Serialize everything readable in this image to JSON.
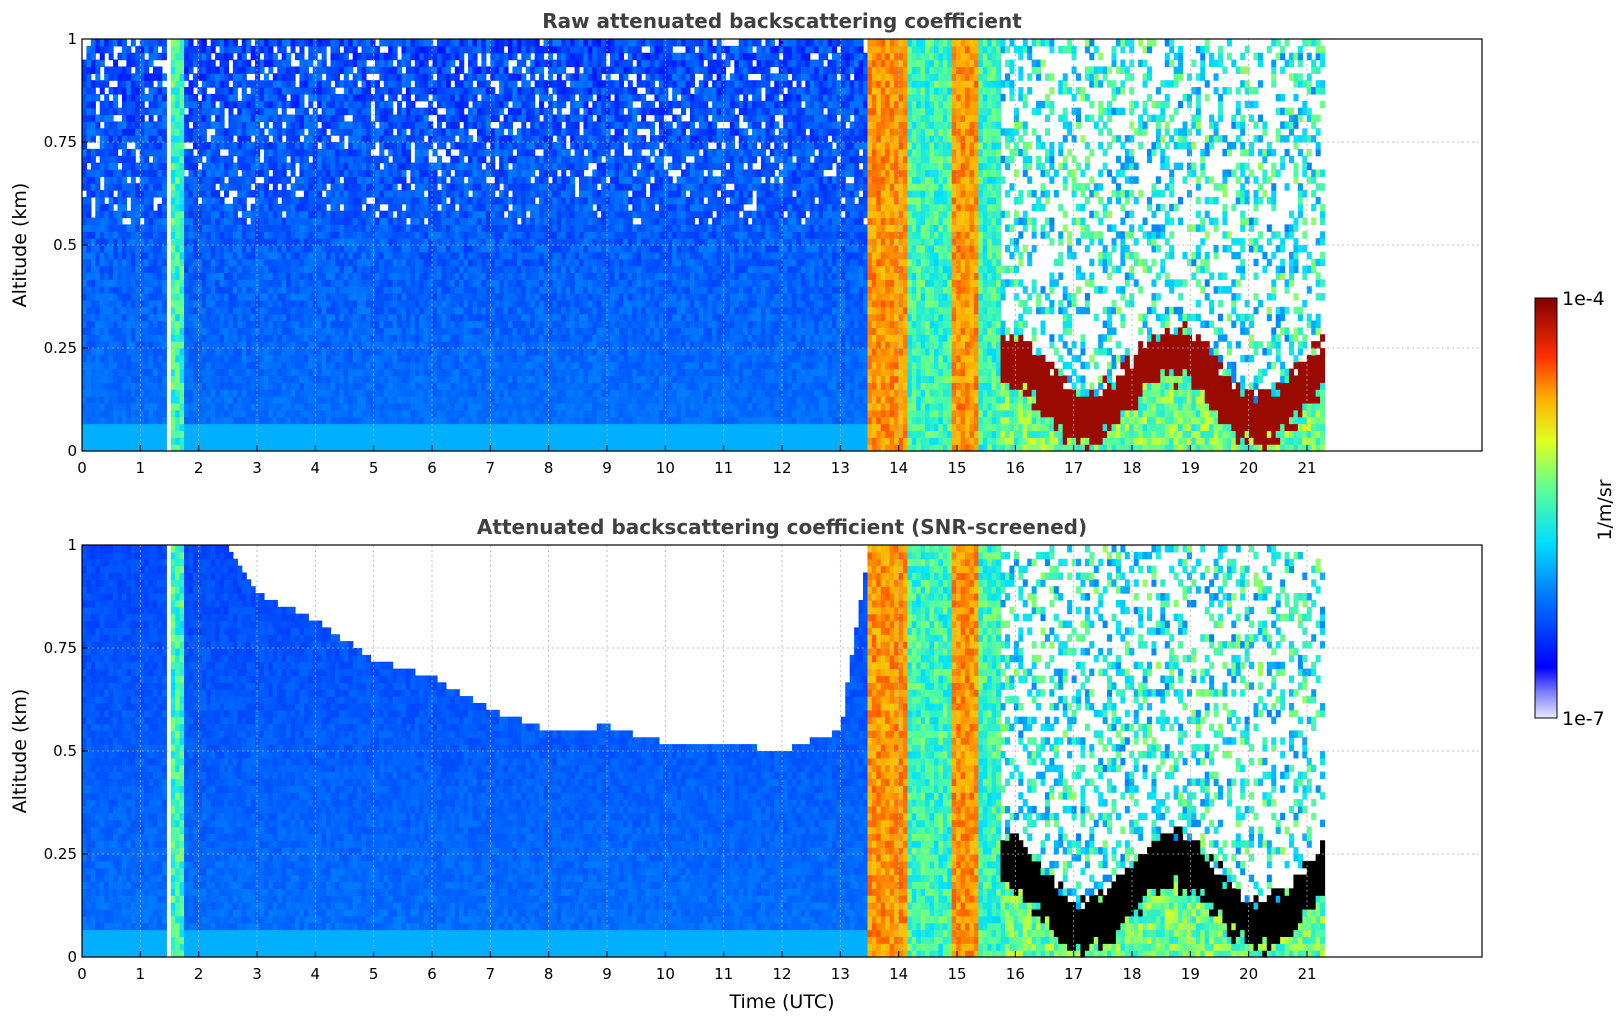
{
  "chart_data": [
    {
      "type": "heatmap",
      "title": "Raw attenuated backscattering coefficient",
      "xlabel": "",
      "ylabel": "Altitude (km)",
      "xlim": [
        0,
        24
      ],
      "ylim": [
        0,
        1
      ],
      "xticks": [
        "0",
        "1",
        "2",
        "3",
        "4",
        "5",
        "6",
        "7",
        "8",
        "9",
        "10",
        "11",
        "12",
        "13",
        "14",
        "15",
        "16",
        "17",
        "18",
        "19",
        "20",
        "21"
      ],
      "yticks": [
        "0",
        "0.25",
        "0.5",
        "0.75",
        "1"
      ],
      "ytick_values": [
        0,
        0.25,
        0.5,
        0.75,
        1
      ],
      "grid": true,
      "data_end_time": 21.3,
      "segments": [
        {
          "t0": 0.0,
          "t1": 1.45,
          "regime": "clear-noisy"
        },
        {
          "t0": 1.45,
          "t1": 1.55,
          "regime": "gap"
        },
        {
          "t0": 1.55,
          "t1": 1.75,
          "regime": "aerosol-column"
        },
        {
          "t0": 1.75,
          "t1": 13.5,
          "regime": "clear-noisy"
        },
        {
          "t0": 13.5,
          "t1": 14.15,
          "regime": "fog-column"
        },
        {
          "t0": 14.15,
          "t1": 14.9,
          "regime": "aerosol-column"
        },
        {
          "t0": 14.9,
          "t1": 15.1,
          "regime": "fog-column"
        },
        {
          "t0": 15.1,
          "t1": 15.4,
          "regime": "fog-column"
        },
        {
          "t0": 15.4,
          "t1": 15.75,
          "regime": "aerosol-column"
        },
        {
          "t0": 15.75,
          "t1": 21.3,
          "regime": "low-cloud"
        }
      ]
    },
    {
      "type": "heatmap",
      "title": "Attenuated backscattering coefficient (SNR-screened)",
      "xlabel": "Time (UTC)",
      "ylabel": "Altitude (km)",
      "xlim": [
        0,
        24
      ],
      "ylim": [
        0,
        1
      ],
      "xticks": [
        "0",
        "1",
        "2",
        "3",
        "4",
        "5",
        "6",
        "7",
        "8",
        "9",
        "10",
        "11",
        "12",
        "13",
        "14",
        "15",
        "16",
        "17",
        "18",
        "19",
        "20",
        "21"
      ],
      "yticks": [
        "0",
        "0.25",
        "0.5",
        "0.75",
        "1"
      ],
      "ytick_values": [
        0,
        0.25,
        0.5,
        0.75,
        1
      ],
      "grid": true,
      "data_end_time": 21.3,
      "screening_top_km": [
        {
          "t": 0.0,
          "top": 1.0
        },
        {
          "t": 2.5,
          "top": 1.0
        },
        {
          "t": 3.0,
          "top": 0.88
        },
        {
          "t": 4.0,
          "top": 0.82
        },
        {
          "t": 5.0,
          "top": 0.72
        },
        {
          "t": 6.0,
          "top": 0.68
        },
        {
          "t": 7.0,
          "top": 0.6
        },
        {
          "t": 8.0,
          "top": 0.55
        },
        {
          "t": 9.0,
          "top": 0.56
        },
        {
          "t": 10.0,
          "top": 0.52
        },
        {
          "t": 11.0,
          "top": 0.52
        },
        {
          "t": 12.0,
          "top": 0.5
        },
        {
          "t": 13.0,
          "top": 0.55
        },
        {
          "t": 13.5,
          "top": 1.0
        }
      ]
    }
  ],
  "colorbar": {
    "label": "1/m/sr",
    "max_label": "1e-4",
    "min_label": "1e-7",
    "colormap": "jet"
  },
  "colors": {
    "clear_low": "#0a52e8",
    "clear_high": "#1e8cf0",
    "aerosol": "#a8f05a",
    "fog": "#ff7a10",
    "cloud_core": "#8b0000",
    "screened_cloud": "#000000"
  }
}
